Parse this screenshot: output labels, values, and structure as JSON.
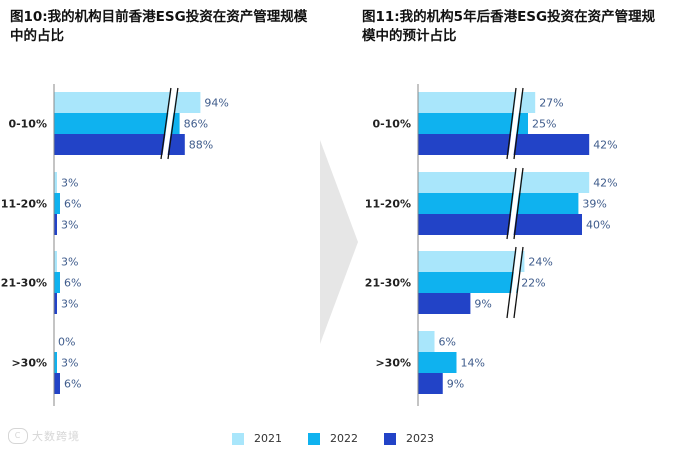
{
  "chart_data": [
    {
      "type": "bar",
      "orientation": "horizontal",
      "title": "图10:我的机构目前香港ESG投资在资产管理规模\n中的占比",
      "categories": [
        "0-10%",
        "11-20%",
        "21-30%",
        ">30%"
      ],
      "series": [
        {
          "name": "2021",
          "values": [
            94,
            3,
            3,
            0
          ],
          "labels": [
            "94%",
            "3%",
            "3%",
            "0%"
          ]
        },
        {
          "name": "2022",
          "values": [
            86,
            6,
            6,
            3
          ],
          "labels": [
            "86%",
            "6%",
            "6%",
            "3%"
          ]
        },
        {
          "name": "2023",
          "values": [
            88,
            3,
            3,
            6
          ],
          "labels": [
            "88%",
            "3%",
            "3%",
            "6%"
          ]
        }
      ],
      "axis_break": {
        "category": "0-10%"
      }
    },
    {
      "type": "bar",
      "orientation": "horizontal",
      "title": "图11:我的机构5年后香港ESG投资在资产管理规\n模中的预计占比",
      "categories": [
        "0-10%",
        "11-20%",
        "21-30%",
        ">30%"
      ],
      "series": [
        {
          "name": "2021",
          "values": [
            27,
            42,
            24,
            6
          ],
          "labels": [
            "27%",
            "42%",
            "24%",
            "6%"
          ]
        },
        {
          "name": "2022",
          "values": [
            25,
            39,
            22,
            14
          ],
          "labels": [
            "25%",
            "39%",
            "22%",
            "14%"
          ]
        },
        {
          "name": "2023",
          "values": [
            42,
            40,
            9,
            9
          ],
          "labels": [
            "42%",
            "40%",
            "9%",
            "9%"
          ]
        }
      ],
      "axis_break": {
        "category": [
          "0-10%",
          "11-20%",
          "21-30%"
        ]
      }
    }
  ],
  "colors": {
    "2021": "#a9e6fb",
    "2022": "#0fb2ef",
    "2023": "#2243c7",
    "label": "#3f5c8c"
  },
  "legend": [
    {
      "label": "2021",
      "color": "#a9e6fb"
    },
    {
      "label": "2022",
      "color": "#0fb2ef"
    },
    {
      "label": "2023",
      "color": "#2243c7"
    }
  ],
  "watermark": "大数跨境"
}
